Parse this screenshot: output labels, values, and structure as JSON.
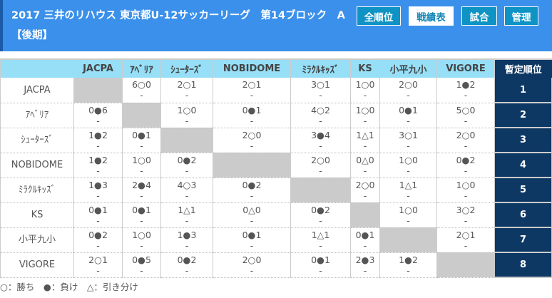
{
  "header": {
    "title": "2017 三井のリハウス 東京都U-12サッカーリーグ　第14ブロック　A【後期】",
    "buttons": [
      {
        "label": "全順位",
        "active": false
      },
      {
        "label": "戦績表",
        "active": true
      },
      {
        "label": "試合",
        "active": false
      },
      {
        "label": "管理",
        "active": false
      }
    ]
  },
  "table": {
    "rank_header": "暫定順位",
    "teams": [
      "JACPA",
      "ｱﾍﾞﾘｱ",
      "ｼｭｰﾀｰｽﾞ",
      "NOBIDOME",
      "ﾐﾗｸﾙｷｯｽﾞ",
      "KS",
      "小平九小",
      "VIGORE"
    ],
    "results": [
      [
        "",
        "6○0",
        "2○1",
        "2○1",
        "3○1",
        "1○0",
        "2○0",
        "1●2"
      ],
      [
        "0●6",
        "",
        "1○0",
        "0●1",
        "4○2",
        "1○0",
        "0●1",
        "5○0"
      ],
      [
        "1●2",
        "0●1",
        "",
        "2○0",
        "3●4",
        "1△1",
        "3○1",
        "2○0"
      ],
      [
        "1●2",
        "1○0",
        "0●2",
        "",
        "2○0",
        "0△0",
        "1○0",
        "0●2"
      ],
      [
        "1●3",
        "2●4",
        "4○3",
        "0●2",
        "",
        "2○0",
        "1△1",
        "1○0"
      ],
      [
        "0●1",
        "0●1",
        "1△1",
        "0△0",
        "0●2",
        "",
        "1○0",
        "3○2"
      ],
      [
        "0●2",
        "1○0",
        "1●3",
        "0●1",
        "1△1",
        "0●1",
        "",
        "2○1"
      ],
      [
        "2○1",
        "0●5",
        "0●2",
        "2○0",
        "0●1",
        "2●3",
        "1●2",
        ""
      ]
    ],
    "second_leg": "-",
    "ranks": [
      "1",
      "2",
      "3",
      "4",
      "5",
      "6",
      "7",
      "8"
    ]
  },
  "legend": "○：勝ち　●：負け　△：引き分け",
  "colors": {
    "header": "#3a90ea",
    "table_header": "#96dff7",
    "rank": "#0e3864",
    "diagonal": "#cbcbcb"
  }
}
